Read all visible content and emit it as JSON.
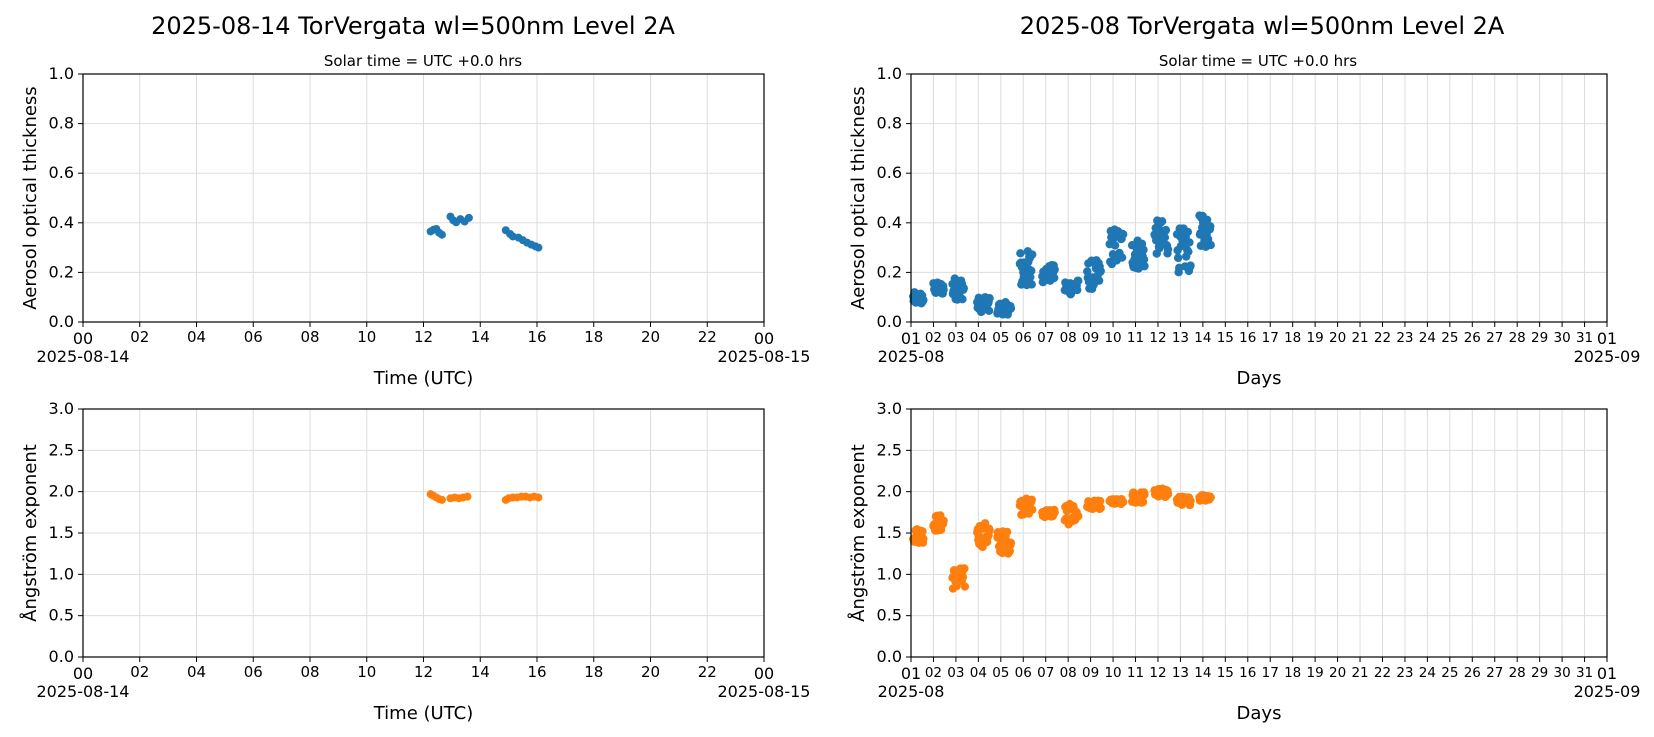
{
  "figure": {
    "left_title": "2025-08-14  TorVergata  wl=500nm  Level 2A",
    "right_title": "2025-08  TorVergata  wl=500nm  Level 2A",
    "subtitle": "Solar time = UTC +0.0 hrs"
  },
  "colors": {
    "aod": "#1f77b4",
    "angstrom": "#ff7f0e",
    "grid": "#dddddd"
  },
  "chart_data": [
    {
      "id": "daily_aod",
      "type": "scatter",
      "title": "2025-08-14  TorVergata  wl=500nm  Level 2A",
      "subtitle": "Solar time = UTC +0.0 hrs",
      "xlabel": "Time (UTC)",
      "ylabel": "Aerosol optical thickness",
      "xlim": [
        0,
        24
      ],
      "ylim": [
        0,
        1
      ],
      "xticks": [
        "00",
        "02",
        "04",
        "06",
        "08",
        "10",
        "12",
        "14",
        "16",
        "18",
        "20",
        "22",
        "00"
      ],
      "xtick_values": [
        0,
        2,
        4,
        6,
        8,
        10,
        12,
        14,
        16,
        18,
        20,
        22,
        24
      ],
      "xdate_left": "2025-08-14",
      "xdate_right": "2025-08-15",
      "yticks": [
        "0.0",
        "0.2",
        "0.4",
        "0.6",
        "0.8",
        "1.0"
      ],
      "ytick_values": [
        0,
        0.2,
        0.4,
        0.6,
        0.8,
        1.0
      ],
      "grid": true,
      "color": "#1f77b4",
      "points": [
        [
          12.25,
          0.365
        ],
        [
          12.35,
          0.372
        ],
        [
          12.45,
          0.375
        ],
        [
          12.55,
          0.36
        ],
        [
          12.65,
          0.352
        ],
        [
          12.95,
          0.425
        ],
        [
          13.05,
          0.41
        ],
        [
          13.15,
          0.402
        ],
        [
          13.3,
          0.415
        ],
        [
          13.45,
          0.405
        ],
        [
          13.6,
          0.42
        ],
        [
          14.9,
          0.37
        ],
        [
          15.05,
          0.355
        ],
        [
          15.15,
          0.345
        ],
        [
          15.35,
          0.34
        ],
        [
          15.5,
          0.33
        ],
        [
          15.65,
          0.32
        ],
        [
          15.8,
          0.312
        ],
        [
          15.95,
          0.305
        ],
        [
          16.05,
          0.3
        ]
      ]
    },
    {
      "id": "monthly_aod",
      "type": "scatter",
      "title": "2025-08  TorVergata  wl=500nm  Level 2A",
      "subtitle": "Solar time = UTC +0.0 hrs",
      "xlabel": "Days",
      "ylabel": "Aerosol optical thickness",
      "xlim": [
        1,
        32
      ],
      "ylim": [
        0,
        1
      ],
      "xticks": [
        "01",
        "02",
        "03",
        "04",
        "05",
        "06",
        "07",
        "08",
        "09",
        "10",
        "11",
        "12",
        "13",
        "14",
        "15",
        "16",
        "17",
        "18",
        "19",
        "20",
        "21",
        "22",
        "23",
        "24",
        "25",
        "26",
        "27",
        "28",
        "29",
        "30",
        "31",
        "01"
      ],
      "xtick_values": [
        1,
        2,
        3,
        4,
        5,
        6,
        7,
        8,
        9,
        10,
        11,
        12,
        13,
        14,
        15,
        16,
        17,
        18,
        19,
        20,
        21,
        22,
        23,
        24,
        25,
        26,
        27,
        28,
        29,
        30,
        31,
        32
      ],
      "xdate_left": "2025-08",
      "xdate_right": "2025-09",
      "yticks": [
        "0.0",
        "0.2",
        "0.4",
        "0.6",
        "0.8",
        "1.0"
      ],
      "ytick_values": [
        0,
        0.2,
        0.4,
        0.6,
        0.8,
        1.0
      ],
      "grid": true,
      "color": "#1f77b4",
      "clusters": [
        {
          "x": [
            1.1,
            1.55
          ],
          "y": [
            0.07,
            0.12
          ]
        },
        {
          "x": [
            2.0,
            2.45
          ],
          "y": [
            0.11,
            0.16
          ]
        },
        {
          "x": [
            2.85,
            3.35
          ],
          "y": [
            0.09,
            0.18
          ]
        },
        {
          "x": [
            3.95,
            4.5
          ],
          "y": [
            0.04,
            0.1
          ]
        },
        {
          "x": [
            4.85,
            5.45
          ],
          "y": [
            0.03,
            0.08
          ]
        },
        {
          "x": [
            5.85,
            6.4
          ],
          "y": [
            0.13,
            0.29
          ]
        },
        {
          "x": [
            6.85,
            7.4
          ],
          "y": [
            0.16,
            0.23
          ]
        },
        {
          "x": [
            7.85,
            8.45
          ],
          "y": [
            0.11,
            0.17
          ]
        },
        {
          "x": [
            8.85,
            9.45
          ],
          "y": [
            0.13,
            0.25
          ]
        },
        {
          "x": [
            9.85,
            10.45
          ],
          "y": [
            0.23,
            0.38
          ]
        },
        {
          "x": [
            10.85,
            11.4
          ],
          "y": [
            0.21,
            0.34
          ]
        },
        {
          "x": [
            11.85,
            12.45
          ],
          "y": [
            0.27,
            0.41
          ]
        },
        {
          "x": [
            12.85,
            13.45
          ],
          "y": [
            0.2,
            0.38
          ]
        },
        {
          "x": [
            13.85,
            14.35
          ],
          "y": [
            0.3,
            0.43
          ]
        }
      ]
    },
    {
      "id": "daily_angstrom",
      "type": "scatter",
      "xlabel": "Time (UTC)",
      "ylabel": "Ångström exponent",
      "xlim": [
        0,
        24
      ],
      "ylim": [
        0,
        3
      ],
      "xticks": [
        "00",
        "02",
        "04",
        "06",
        "08",
        "10",
        "12",
        "14",
        "16",
        "18",
        "20",
        "22",
        "00"
      ],
      "xtick_values": [
        0,
        2,
        4,
        6,
        8,
        10,
        12,
        14,
        16,
        18,
        20,
        22,
        24
      ],
      "xdate_left": "2025-08-14",
      "xdate_right": "2025-08-15",
      "yticks": [
        "0.0",
        "0.5",
        "1.0",
        "1.5",
        "2.0",
        "2.5",
        "3.0"
      ],
      "ytick_values": [
        0,
        0.5,
        1.0,
        1.5,
        2.0,
        2.5,
        3.0
      ],
      "grid": true,
      "color": "#ff7f0e",
      "points": [
        [
          12.25,
          1.97
        ],
        [
          12.35,
          1.95
        ],
        [
          12.45,
          1.93
        ],
        [
          12.55,
          1.91
        ],
        [
          12.65,
          1.9
        ],
        [
          12.95,
          1.92
        ],
        [
          13.1,
          1.93
        ],
        [
          13.25,
          1.92
        ],
        [
          13.4,
          1.93
        ],
        [
          13.55,
          1.94
        ],
        [
          14.9,
          1.9
        ],
        [
          15.0,
          1.92
        ],
        [
          15.15,
          1.93
        ],
        [
          15.3,
          1.93
        ],
        [
          15.45,
          1.94
        ],
        [
          15.6,
          1.94
        ],
        [
          15.75,
          1.93
        ],
        [
          15.9,
          1.94
        ],
        [
          16.05,
          1.93
        ]
      ]
    },
    {
      "id": "monthly_angstrom",
      "type": "scatter",
      "xlabel": "Days",
      "ylabel": "Ångström exponent",
      "xlim": [
        1,
        32
      ],
      "ylim": [
        0,
        3
      ],
      "xticks": [
        "01",
        "02",
        "03",
        "04",
        "05",
        "06",
        "07",
        "08",
        "09",
        "10",
        "11",
        "12",
        "13",
        "14",
        "15",
        "16",
        "17",
        "18",
        "19",
        "20",
        "21",
        "22",
        "23",
        "24",
        "25",
        "26",
        "27",
        "28",
        "29",
        "30",
        "31",
        "01"
      ],
      "xtick_values": [
        1,
        2,
        3,
        4,
        5,
        6,
        7,
        8,
        9,
        10,
        11,
        12,
        13,
        14,
        15,
        16,
        17,
        18,
        19,
        20,
        21,
        22,
        23,
        24,
        25,
        26,
        27,
        28,
        29,
        30,
        31,
        32
      ],
      "xdate_left": "2025-08",
      "xdate_right": "2025-09",
      "yticks": [
        "0.0",
        "0.5",
        "1.0",
        "1.5",
        "2.0",
        "2.5",
        "3.0"
      ],
      "ytick_values": [
        0,
        0.5,
        1.0,
        1.5,
        2.0,
        2.5,
        3.0
      ],
      "grid": true,
      "color": "#ff7f0e",
      "clusters": [
        {
          "x": [
            1.1,
            1.55
          ],
          "y": [
            1.38,
            1.56
          ]
        },
        {
          "x": [
            2.0,
            2.45
          ],
          "y": [
            1.52,
            1.72
          ]
        },
        {
          "x": [
            2.85,
            3.4
          ],
          "y": [
            0.82,
            1.08
          ]
        },
        {
          "x": [
            3.95,
            4.5
          ],
          "y": [
            1.33,
            1.63
          ]
        },
        {
          "x": [
            4.85,
            5.45
          ],
          "y": [
            1.25,
            1.53
          ]
        },
        {
          "x": [
            5.85,
            6.4
          ],
          "y": [
            1.72,
            1.92
          ]
        },
        {
          "x": [
            6.85,
            7.4
          ],
          "y": [
            1.69,
            1.79
          ]
        },
        {
          "x": [
            7.85,
            8.45
          ],
          "y": [
            1.6,
            1.85
          ]
        },
        {
          "x": [
            8.85,
            9.45
          ],
          "y": [
            1.79,
            1.89
          ]
        },
        {
          "x": [
            9.85,
            10.45
          ],
          "y": [
            1.84,
            1.91
          ]
        },
        {
          "x": [
            10.85,
            11.4
          ],
          "y": [
            1.86,
            2.0
          ]
        },
        {
          "x": [
            11.85,
            12.45
          ],
          "y": [
            1.93,
            2.04
          ]
        },
        {
          "x": [
            12.85,
            13.45
          ],
          "y": [
            1.84,
            1.94
          ]
        },
        {
          "x": [
            13.85,
            14.35
          ],
          "y": [
            1.89,
            1.97
          ]
        }
      ]
    }
  ]
}
